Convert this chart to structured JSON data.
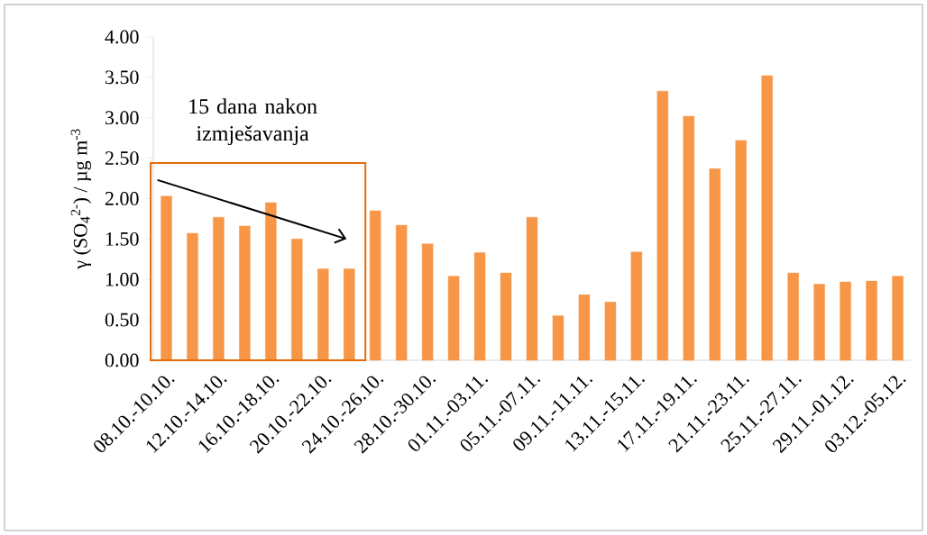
{
  "chart_data": {
    "type": "bar",
    "ylabel": "γ (SO$_{4}$$^{2-}$) / µg m$^{-3}$",
    "categories": [
      "08.10.-10.10.",
      null,
      "12.10.-14.10.",
      null,
      "16.10.-18.10.",
      null,
      "20.10.-22.10.",
      null,
      "24.10.-26.10.",
      null,
      "28.10.-30.10.",
      null,
      "01.11.-03.11.",
      null,
      "05.11.-07.11.",
      null,
      "09.11.-11.11.",
      null,
      "13.11.-15.11.",
      null,
      "17.11.-19.11.",
      null,
      "21.11.-23.11.",
      null,
      "25.11.-27.11.",
      null,
      "29.11.-01.12.",
      null,
      "03.12.-05.12."
    ],
    "values": [
      2.03,
      1.57,
      1.77,
      1.66,
      1.95,
      1.5,
      1.13,
      1.13,
      1.85,
      1.67,
      1.44,
      1.04,
      1.33,
      1.08,
      1.77,
      0.55,
      0.81,
      0.72,
      1.34,
      3.33,
      3.02,
      2.37,
      2.72,
      3.52,
      1.08,
      0.94,
      0.97,
      0.98,
      1.04
    ],
    "color": "#f79646",
    "ylim": [
      0,
      4
    ],
    "yticks": [
      {
        "value": 0,
        "label": "0.00"
      },
      {
        "value": 0.5,
        "label": "0.50"
      },
      {
        "value": 1,
        "label": "1.00"
      },
      {
        "value": 1.5,
        "label": "1.50"
      },
      {
        "value": 2,
        "label": "2.00"
      },
      {
        "value": 2.5,
        "label": "2.50"
      },
      {
        "value": 3,
        "label": "3.00"
      },
      {
        "value": 3.5,
        "label": "3.50"
      },
      {
        "value": 4,
        "label": "4.00"
      }
    ],
    "annotations": [
      "15 dana nakon izmješavanja"
    ]
  }
}
